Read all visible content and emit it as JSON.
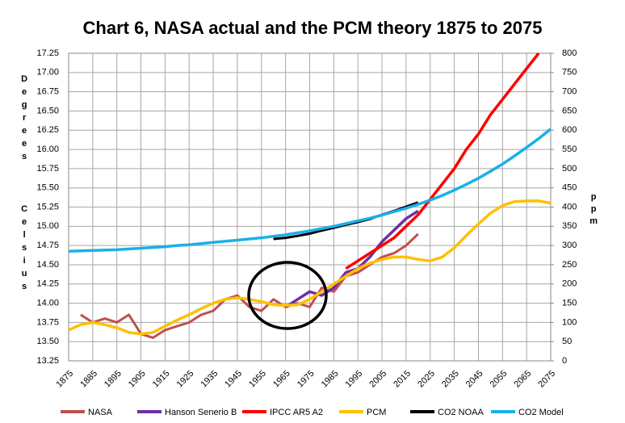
{
  "chart_data": {
    "type": "line",
    "title": "Chart 6, NASA actual and the PCM theory 1875 to 2075",
    "y_label": "Degrees",
    "y_label_2": "Celsius",
    "y2_label": "ppm",
    "x": [
      1875,
      1880,
      1885,
      1890,
      1895,
      1900,
      1905,
      1910,
      1915,
      1920,
      1925,
      1930,
      1935,
      1940,
      1945,
      1950,
      1955,
      1960,
      1965,
      1970,
      1975,
      1980,
      1985,
      1990,
      1995,
      2000,
      2005,
      2010,
      2015,
      2020,
      2025,
      2030,
      2035,
      2040,
      2045,
      2050,
      2055,
      2060,
      2065,
      2070,
      2075
    ],
    "xlim": [
      1875,
      2075
    ],
    "xticks": [
      1875,
      1885,
      1895,
      1905,
      1915,
      1925,
      1935,
      1945,
      1955,
      1965,
      1975,
      1985,
      1995,
      2005,
      2015,
      2025,
      2035,
      2045,
      2055,
      2065,
      2075
    ],
    "ylim": [
      13.25,
      17.25
    ],
    "yticks": [
      13.25,
      {
        "value": 13.5,
        "label": "13.50"
      },
      13.75,
      {
        "value": 14,
        "label": "14.00"
      },
      14.25,
      {
        "value": 14.5,
        "label": "14.50"
      },
      14.75,
      {
        "value": 15,
        "label": "15.00"
      },
      15.25,
      {
        "value": 15.5,
        "label": "15.50"
      },
      15.75,
      {
        "value": 16,
        "label": "16.00"
      },
      16.25,
      {
        "value": 16.5,
        "label": "16.50"
      },
      16.75,
      {
        "value": 17,
        "label": "17.00"
      },
      17.25
    ],
    "y2lim": [
      0,
      800
    ],
    "y2ticks": [
      0,
      50,
      100,
      150,
      200,
      250,
      300,
      350,
      400,
      450,
      500,
      550,
      600,
      650,
      700,
      750,
      800
    ],
    "grid": true,
    "series": [
      {
        "name": "NASA",
        "color": "#c0504d",
        "values": [
          null,
          13.85,
          13.75,
          13.8,
          13.75,
          13.85,
          13.6,
          13.55,
          13.65,
          13.7,
          13.75,
          13.85,
          13.9,
          14.05,
          14.1,
          13.95,
          13.9,
          14.05,
          13.95,
          14.0,
          13.95,
          14.2,
          14.15,
          14.35,
          14.4,
          14.5,
          14.6,
          14.65,
          14.75,
          14.9,
          null,
          null,
          null,
          null,
          null,
          null,
          null,
          null,
          null,
          null,
          null
        ]
      },
      {
        "name": "Hanson Senerio B",
        "color": "#7030a0",
        "values": [
          null,
          null,
          null,
          null,
          null,
          null,
          null,
          null,
          null,
          null,
          null,
          null,
          null,
          null,
          null,
          null,
          null,
          null,
          13.95,
          14.05,
          14.15,
          14.1,
          14.2,
          14.4,
          14.45,
          14.6,
          14.8,
          14.95,
          15.1,
          15.2,
          null,
          null,
          null,
          null,
          null,
          null,
          null,
          null,
          null,
          null,
          null
        ]
      },
      {
        "name": "IPCC AR5 A2",
        "color": "#ff0000",
        "values": [
          null,
          null,
          null,
          null,
          null,
          null,
          null,
          null,
          null,
          null,
          null,
          null,
          null,
          null,
          null,
          null,
          null,
          null,
          null,
          null,
          null,
          null,
          null,
          14.45,
          14.55,
          14.65,
          14.75,
          14.85,
          15.0,
          15.15,
          15.35,
          15.55,
          15.75,
          16.0,
          16.2,
          16.45,
          16.65,
          16.85,
          17.05,
          17.25,
          null
        ]
      },
      {
        "name": "PCM",
        "color": "#ffc000",
        "values": [
          13.65,
          13.72,
          13.75,
          13.72,
          13.68,
          13.62,
          13.6,
          13.62,
          13.7,
          13.78,
          13.85,
          13.93,
          14.0,
          14.05,
          14.07,
          14.05,
          14.02,
          13.98,
          13.97,
          13.98,
          14.05,
          14.15,
          14.25,
          14.35,
          14.45,
          14.52,
          14.57,
          14.6,
          14.6,
          14.57,
          14.55,
          14.6,
          14.72,
          14.88,
          15.03,
          15.17,
          15.27,
          15.32,
          15.33,
          15.33,
          15.3
        ]
      },
      {
        "name": "CO2 NOAA",
        "color": "#000000",
        "axis": "y2",
        "values": [
          null,
          null,
          null,
          null,
          null,
          null,
          null,
          null,
          null,
          null,
          null,
          null,
          null,
          null,
          null,
          null,
          null,
          317,
          320,
          325,
          331,
          339,
          346,
          354,
          361,
          369,
          380,
          390,
          401,
          412,
          null,
          null,
          null,
          null,
          null,
          null,
          null,
          null,
          null,
          null,
          null
        ]
      },
      {
        "name": "CO2 Model",
        "color": "#1ab0e8",
        "axis": "y2",
        "values": [
          285,
          286,
          287,
          288,
          289,
          291,
          293,
          295,
          297,
          300,
          302,
          305,
          308,
          311,
          314,
          317,
          320,
          324,
          328,
          333,
          338,
          344,
          350,
          357,
          364,
          371,
          379,
          388,
          397,
          407,
          418,
          430,
          444,
          459,
          475,
          493,
          512,
          533,
          555,
          578,
          603
        ]
      }
    ]
  }
}
